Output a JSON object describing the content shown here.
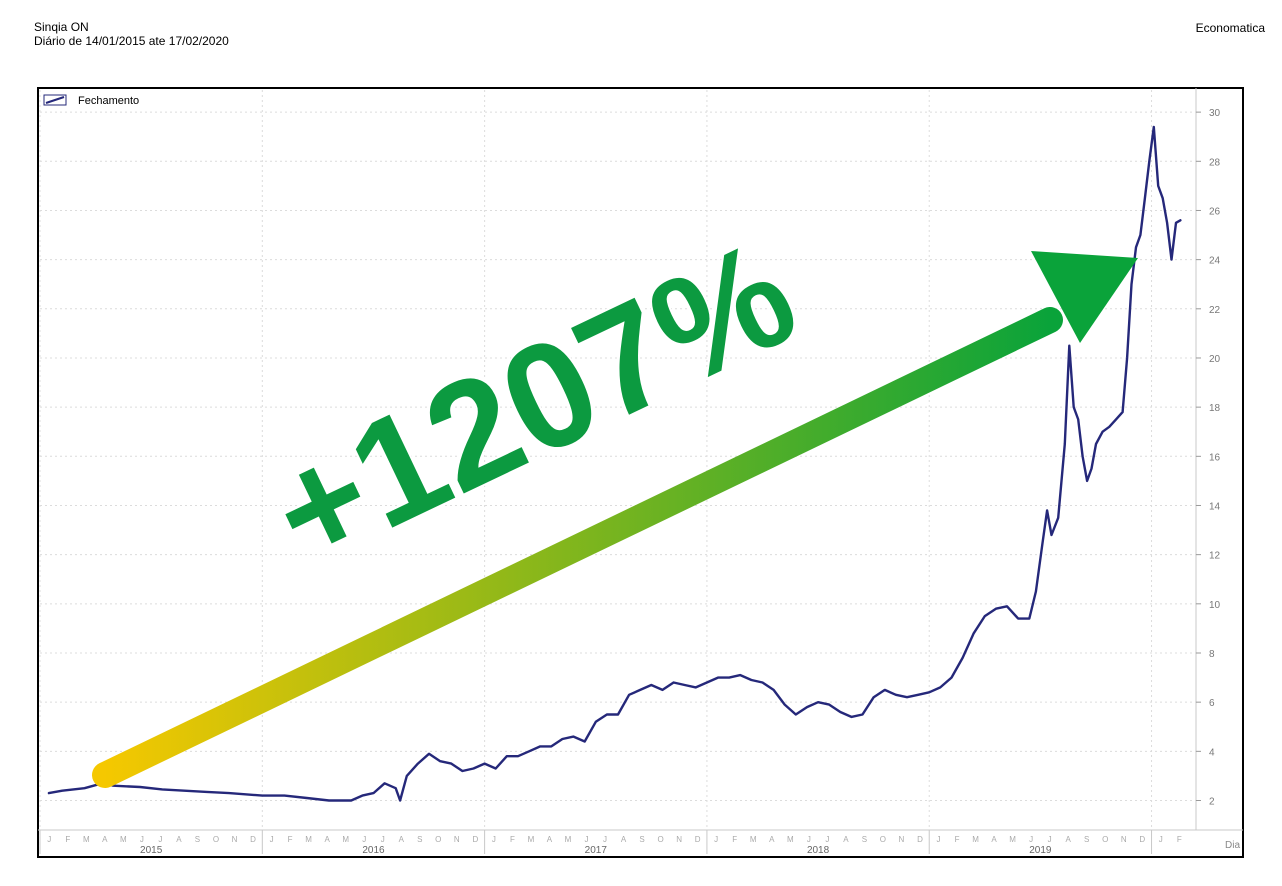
{
  "header": {
    "title": "Sinqia ON",
    "subtitle": "Diário de 14/01/2015 ate 17/02/2020",
    "source": "Economatica"
  },
  "annotation": {
    "label": "+1207%",
    "arrow_start_color": "#f5c800",
    "arrow_end_color": "#0aa33a",
    "label_color": "#0c9a40"
  },
  "chart_data": {
    "type": "line",
    "series": [
      {
        "name": "Fechamento",
        "color": "#25287a",
        "points": [
          [
            2015.04,
            2.3
          ],
          [
            2015.1,
            2.4
          ],
          [
            2015.2,
            2.5
          ],
          [
            2015.28,
            2.7
          ],
          [
            2015.33,
            2.6
          ],
          [
            2015.45,
            2.55
          ],
          [
            2015.55,
            2.45
          ],
          [
            2015.65,
            2.4
          ],
          [
            2015.75,
            2.35
          ],
          [
            2015.85,
            2.3
          ],
          [
            2016.0,
            2.2
          ],
          [
            2016.1,
            2.2
          ],
          [
            2016.2,
            2.1
          ],
          [
            2016.3,
            2.0
          ],
          [
            2016.4,
            2.0
          ],
          [
            2016.45,
            2.2
          ],
          [
            2016.5,
            2.3
          ],
          [
            2016.55,
            2.7
          ],
          [
            2016.6,
            2.5
          ],
          [
            2016.62,
            2.0
          ],
          [
            2016.65,
            3.0
          ],
          [
            2016.7,
            3.5
          ],
          [
            2016.75,
            3.9
          ],
          [
            2016.8,
            3.6
          ],
          [
            2016.85,
            3.5
          ],
          [
            2016.9,
            3.2
          ],
          [
            2016.95,
            3.3
          ],
          [
            2017.0,
            3.5
          ],
          [
            2017.05,
            3.3
          ],
          [
            2017.1,
            3.8
          ],
          [
            2017.15,
            3.8
          ],
          [
            2017.2,
            4.0
          ],
          [
            2017.25,
            4.2
          ],
          [
            2017.3,
            4.2
          ],
          [
            2017.35,
            4.5
          ],
          [
            2017.4,
            4.6
          ],
          [
            2017.45,
            4.4
          ],
          [
            2017.5,
            5.2
          ],
          [
            2017.55,
            5.5
          ],
          [
            2017.6,
            5.5
          ],
          [
            2017.65,
            6.3
          ],
          [
            2017.7,
            6.5
          ],
          [
            2017.75,
            6.7
          ],
          [
            2017.8,
            6.5
          ],
          [
            2017.85,
            6.8
          ],
          [
            2017.9,
            6.7
          ],
          [
            2017.95,
            6.6
          ],
          [
            2018.0,
            6.8
          ],
          [
            2018.05,
            7.0
          ],
          [
            2018.1,
            7.0
          ],
          [
            2018.15,
            7.1
          ],
          [
            2018.2,
            6.9
          ],
          [
            2018.25,
            6.8
          ],
          [
            2018.3,
            6.5
          ],
          [
            2018.35,
            5.9
          ],
          [
            2018.4,
            5.5
          ],
          [
            2018.45,
            5.8
          ],
          [
            2018.5,
            6.0
          ],
          [
            2018.55,
            5.9
          ],
          [
            2018.6,
            5.6
          ],
          [
            2018.65,
            5.4
          ],
          [
            2018.7,
            5.5
          ],
          [
            2018.75,
            6.2
          ],
          [
            2018.8,
            6.5
          ],
          [
            2018.85,
            6.3
          ],
          [
            2018.9,
            6.2
          ],
          [
            2018.95,
            6.3
          ],
          [
            2019.0,
            6.4
          ],
          [
            2019.05,
            6.6
          ],
          [
            2019.1,
            7.0
          ],
          [
            2019.15,
            7.8
          ],
          [
            2019.2,
            8.8
          ],
          [
            2019.25,
            9.5
          ],
          [
            2019.3,
            9.8
          ],
          [
            2019.35,
            9.9
          ],
          [
            2019.4,
            9.4
          ],
          [
            2019.45,
            9.4
          ],
          [
            2019.48,
            10.5
          ],
          [
            2019.51,
            12.5
          ],
          [
            2019.53,
            13.8
          ],
          [
            2019.55,
            12.8
          ],
          [
            2019.58,
            13.5
          ],
          [
            2019.61,
            16.5
          ],
          [
            2019.63,
            20.5
          ],
          [
            2019.65,
            18.0
          ],
          [
            2019.67,
            17.5
          ],
          [
            2019.69,
            16.0
          ],
          [
            2019.71,
            15.0
          ],
          [
            2019.73,
            15.5
          ],
          [
            2019.75,
            16.5
          ],
          [
            2019.78,
            17.0
          ],
          [
            2019.81,
            17.2
          ],
          [
            2019.84,
            17.5
          ],
          [
            2019.87,
            17.8
          ],
          [
            2019.89,
            20.0
          ],
          [
            2019.91,
            23.0
          ],
          [
            2019.93,
            24.5
          ],
          [
            2019.95,
            25.0
          ],
          [
            2019.97,
            26.5
          ],
          [
            2019.99,
            28.0
          ],
          [
            2020.01,
            29.4
          ],
          [
            2020.03,
            27.0
          ],
          [
            2020.05,
            26.5
          ],
          [
            2020.07,
            25.5
          ],
          [
            2020.09,
            24.0
          ],
          [
            2020.11,
            25.5
          ],
          [
            2020.13,
            25.6
          ]
        ]
      }
    ],
    "legend": "top-left",
    "grid": true,
    "x_label": "Dia",
    "xlim": [
      2015.0,
      2020.2
    ],
    "ylim": [
      0.8,
      30.9
    ],
    "y_ticks": [
      2,
      4,
      6,
      8,
      10,
      12,
      14,
      16,
      18,
      20,
      22,
      24,
      26,
      28,
      30
    ],
    "x_years": [
      "2015",
      "2016",
      "2017",
      "2018",
      "2019"
    ],
    "x_months": [
      "J",
      "F",
      "M",
      "A",
      "M",
      "J",
      "J",
      "A",
      "S",
      "O",
      "N",
      "D"
    ],
    "x_months_partial": [
      "J",
      "F"
    ]
  }
}
